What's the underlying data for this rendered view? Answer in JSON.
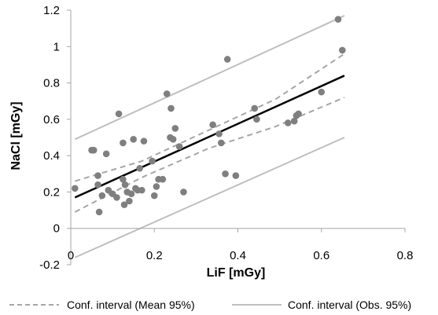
{
  "chart_data": {
    "type": "scatter",
    "title": "",
    "xlabel": "LiF [mGy]",
    "ylabel": "NaCl [mGy]",
    "xlim": [
      0,
      0.8
    ],
    "ylim": [
      -0.2,
      1.2
    ],
    "xticks": [
      0,
      0.2,
      0.4,
      0.6,
      0.8
    ],
    "xtick_labels": [
      "0",
      "0.2",
      "0.4",
      "0.6",
      "0.8"
    ],
    "yticks": [
      -0.2,
      0,
      0.2,
      0.4,
      0.6,
      0.8,
      1,
      1.2
    ],
    "ytick_labels": [
      "-0.2",
      "0",
      "0.2",
      "0.4",
      "0.6",
      "0.8",
      "1",
      "1.2"
    ],
    "grid": false,
    "legend_position": "bottom",
    "colors": {
      "points": "#7f7f7f",
      "fit_line": "#000000",
      "mean_ci": "#a6a6a6",
      "obs_ci": "#bfbfbf",
      "axis": "#a6a6a6"
    },
    "points": [
      {
        "x": 0.01,
        "y": 0.22
      },
      {
        "x": 0.05,
        "y": 0.43
      },
      {
        "x": 0.055,
        "y": 0.43
      },
      {
        "x": 0.065,
        "y": 0.29
      },
      {
        "x": 0.065,
        "y": 0.24
      },
      {
        "x": 0.068,
        "y": 0.09
      },
      {
        "x": 0.075,
        "y": 0.18
      },
      {
        "x": 0.085,
        "y": 0.41
      },
      {
        "x": 0.09,
        "y": 0.21
      },
      {
        "x": 0.1,
        "y": 0.19
      },
      {
        "x": 0.11,
        "y": 0.17
      },
      {
        "x": 0.115,
        "y": 0.63
      },
      {
        "x": 0.125,
        "y": 0.47
      },
      {
        "x": 0.125,
        "y": 0.27
      },
      {
        "x": 0.128,
        "y": 0.13
      },
      {
        "x": 0.13,
        "y": 0.24
      },
      {
        "x": 0.135,
        "y": 0.2
      },
      {
        "x": 0.14,
        "y": 0.15
      },
      {
        "x": 0.145,
        "y": 0.19
      },
      {
        "x": 0.15,
        "y": 0.49
      },
      {
        "x": 0.155,
        "y": 0.22
      },
      {
        "x": 0.16,
        "y": 0.21
      },
      {
        "x": 0.165,
        "y": 0.33
      },
      {
        "x": 0.17,
        "y": 0.21
      },
      {
        "x": 0.175,
        "y": 0.48
      },
      {
        "x": 0.195,
        "y": 0.37
      },
      {
        "x": 0.2,
        "y": 0.18
      },
      {
        "x": 0.205,
        "y": 0.23
      },
      {
        "x": 0.21,
        "y": 0.27
      },
      {
        "x": 0.22,
        "y": 0.27
      },
      {
        "x": 0.23,
        "y": 0.74
      },
      {
        "x": 0.24,
        "y": 0.66
      },
      {
        "x": 0.238,
        "y": 0.5
      },
      {
        "x": 0.245,
        "y": 0.49
      },
      {
        "x": 0.25,
        "y": 0.55
      },
      {
        "x": 0.26,
        "y": 0.45
      },
      {
        "x": 0.27,
        "y": 0.2
      },
      {
        "x": 0.34,
        "y": 0.57
      },
      {
        "x": 0.355,
        "y": 0.52
      },
      {
        "x": 0.36,
        "y": 0.47
      },
      {
        "x": 0.37,
        "y": 0.3
      },
      {
        "x": 0.375,
        "y": 0.93
      },
      {
        "x": 0.395,
        "y": 0.29
      },
      {
        "x": 0.44,
        "y": 0.66
      },
      {
        "x": 0.445,
        "y": 0.6
      },
      {
        "x": 0.52,
        "y": 0.58
      },
      {
        "x": 0.535,
        "y": 0.59
      },
      {
        "x": 0.54,
        "y": 0.62
      },
      {
        "x": 0.545,
        "y": 0.63
      },
      {
        "x": 0.6,
        "y": 0.75
      },
      {
        "x": 0.64,
        "y": 1.15
      },
      {
        "x": 0.65,
        "y": 0.98
      }
    ],
    "fit_line": {
      "x": [
        0.01,
        0.655
      ],
      "y": [
        0.17,
        0.84
      ]
    },
    "series": [
      {
        "name": "Conf. interval (Mean 95%)",
        "style": "dashed",
        "upper": {
          "x": [
            0.01,
            0.17,
            0.33,
            0.49,
            0.655
          ],
          "y": [
            0.26,
            0.37,
            0.54,
            0.71,
            0.96
          ]
        },
        "lower": {
          "x": [
            0.01,
            0.17,
            0.33,
            0.49,
            0.655
          ],
          "y": [
            0.09,
            0.28,
            0.44,
            0.56,
            0.72
          ]
        }
      },
      {
        "name": "Conf. interval (Obs. 95%)",
        "style": "solid",
        "upper": {
          "x": [
            0.01,
            0.655
          ],
          "y": [
            0.49,
            1.17
          ]
        },
        "lower": {
          "x": [
            0.01,
            0.655
          ],
          "y": [
            -0.16,
            0.5
          ]
        }
      }
    ]
  }
}
